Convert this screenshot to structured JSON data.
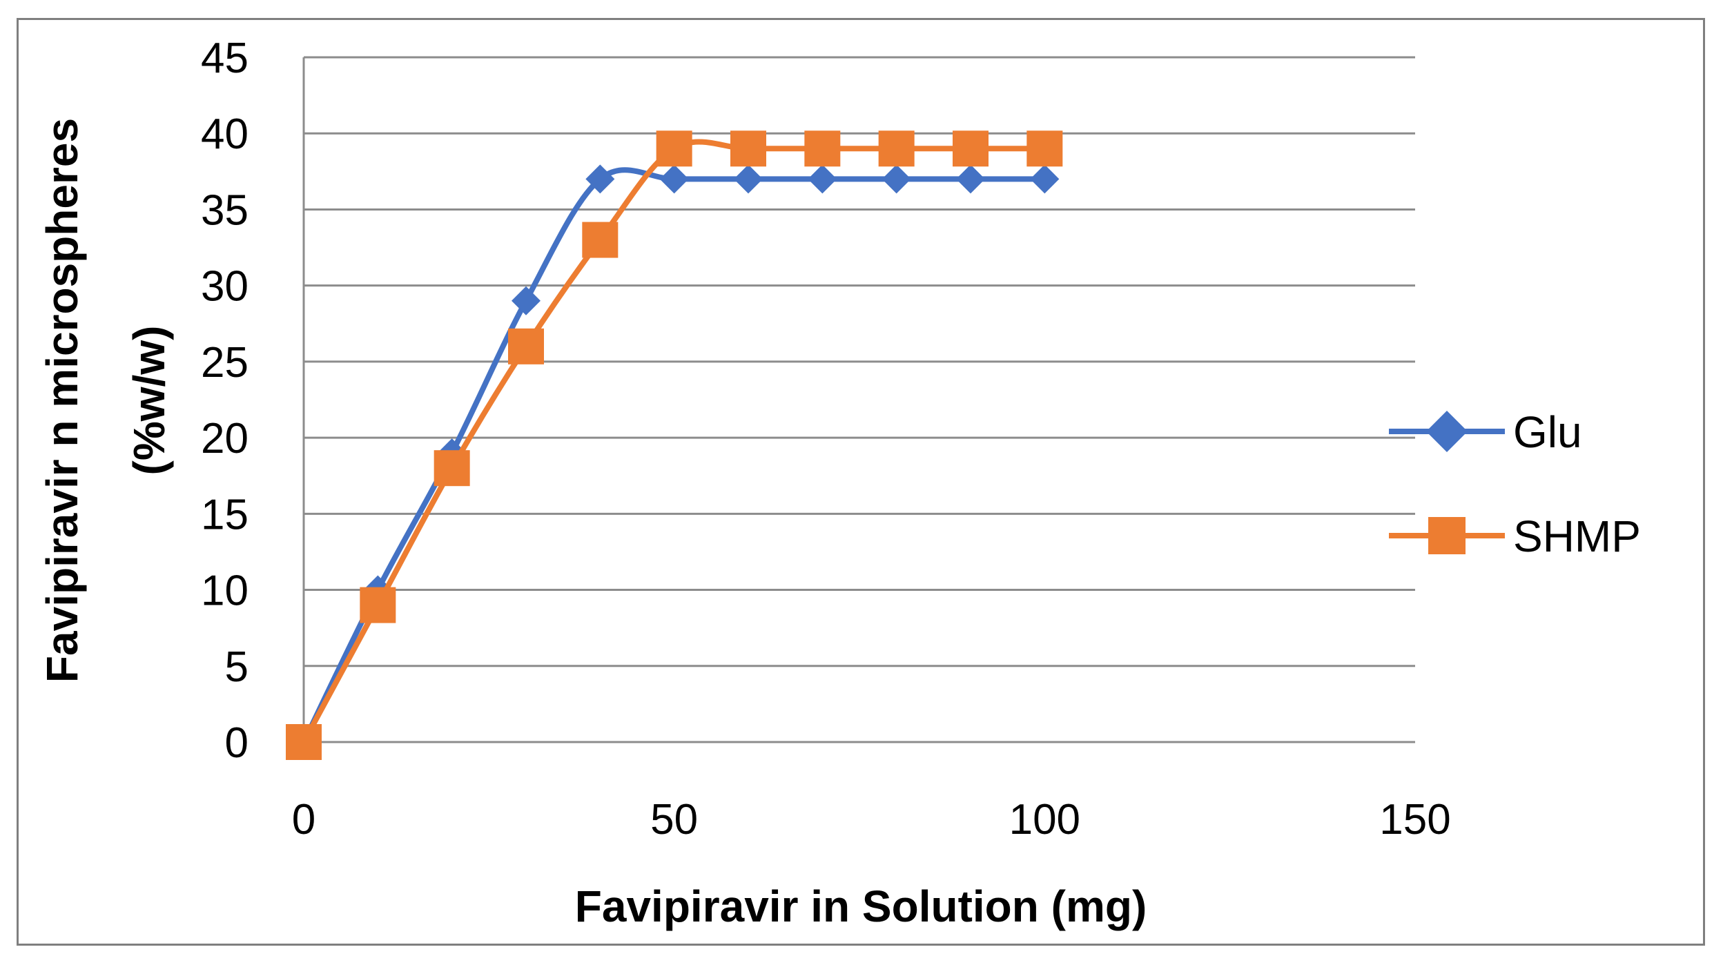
{
  "chart_data": {
    "type": "line",
    "xlabel": "Favipiravir in Solution (mg)",
    "ylabel_line1": "Favipiravir n microspheres",
    "ylabel_line2": "(%w/w)",
    "xlim": [
      0,
      150
    ],
    "ylim": [
      0,
      45
    ],
    "x_ticks": [
      0,
      50,
      100,
      150
    ],
    "y_ticks": [
      0,
      5,
      10,
      15,
      20,
      25,
      30,
      35,
      40,
      45
    ],
    "grid": "horizontal",
    "legend_position": "right",
    "series": [
      {
        "name": "Glu",
        "color": "#4472c4",
        "marker": "diamond",
        "smooth": true,
        "x": [
          0,
          10,
          20,
          30,
          40,
          50,
          60,
          70,
          80,
          90,
          100
        ],
        "y": [
          0,
          10,
          19,
          29,
          37,
          37,
          37,
          37,
          37,
          37,
          37
        ]
      },
      {
        "name": "SHMP",
        "color": "#ed7d31",
        "marker": "square",
        "smooth": true,
        "x": [
          0,
          10,
          20,
          30,
          40,
          50,
          60,
          70,
          80,
          90,
          100
        ],
        "y": [
          0,
          9,
          18,
          26,
          33,
          39,
          39,
          39,
          39,
          39,
          39
        ]
      }
    ]
  }
}
